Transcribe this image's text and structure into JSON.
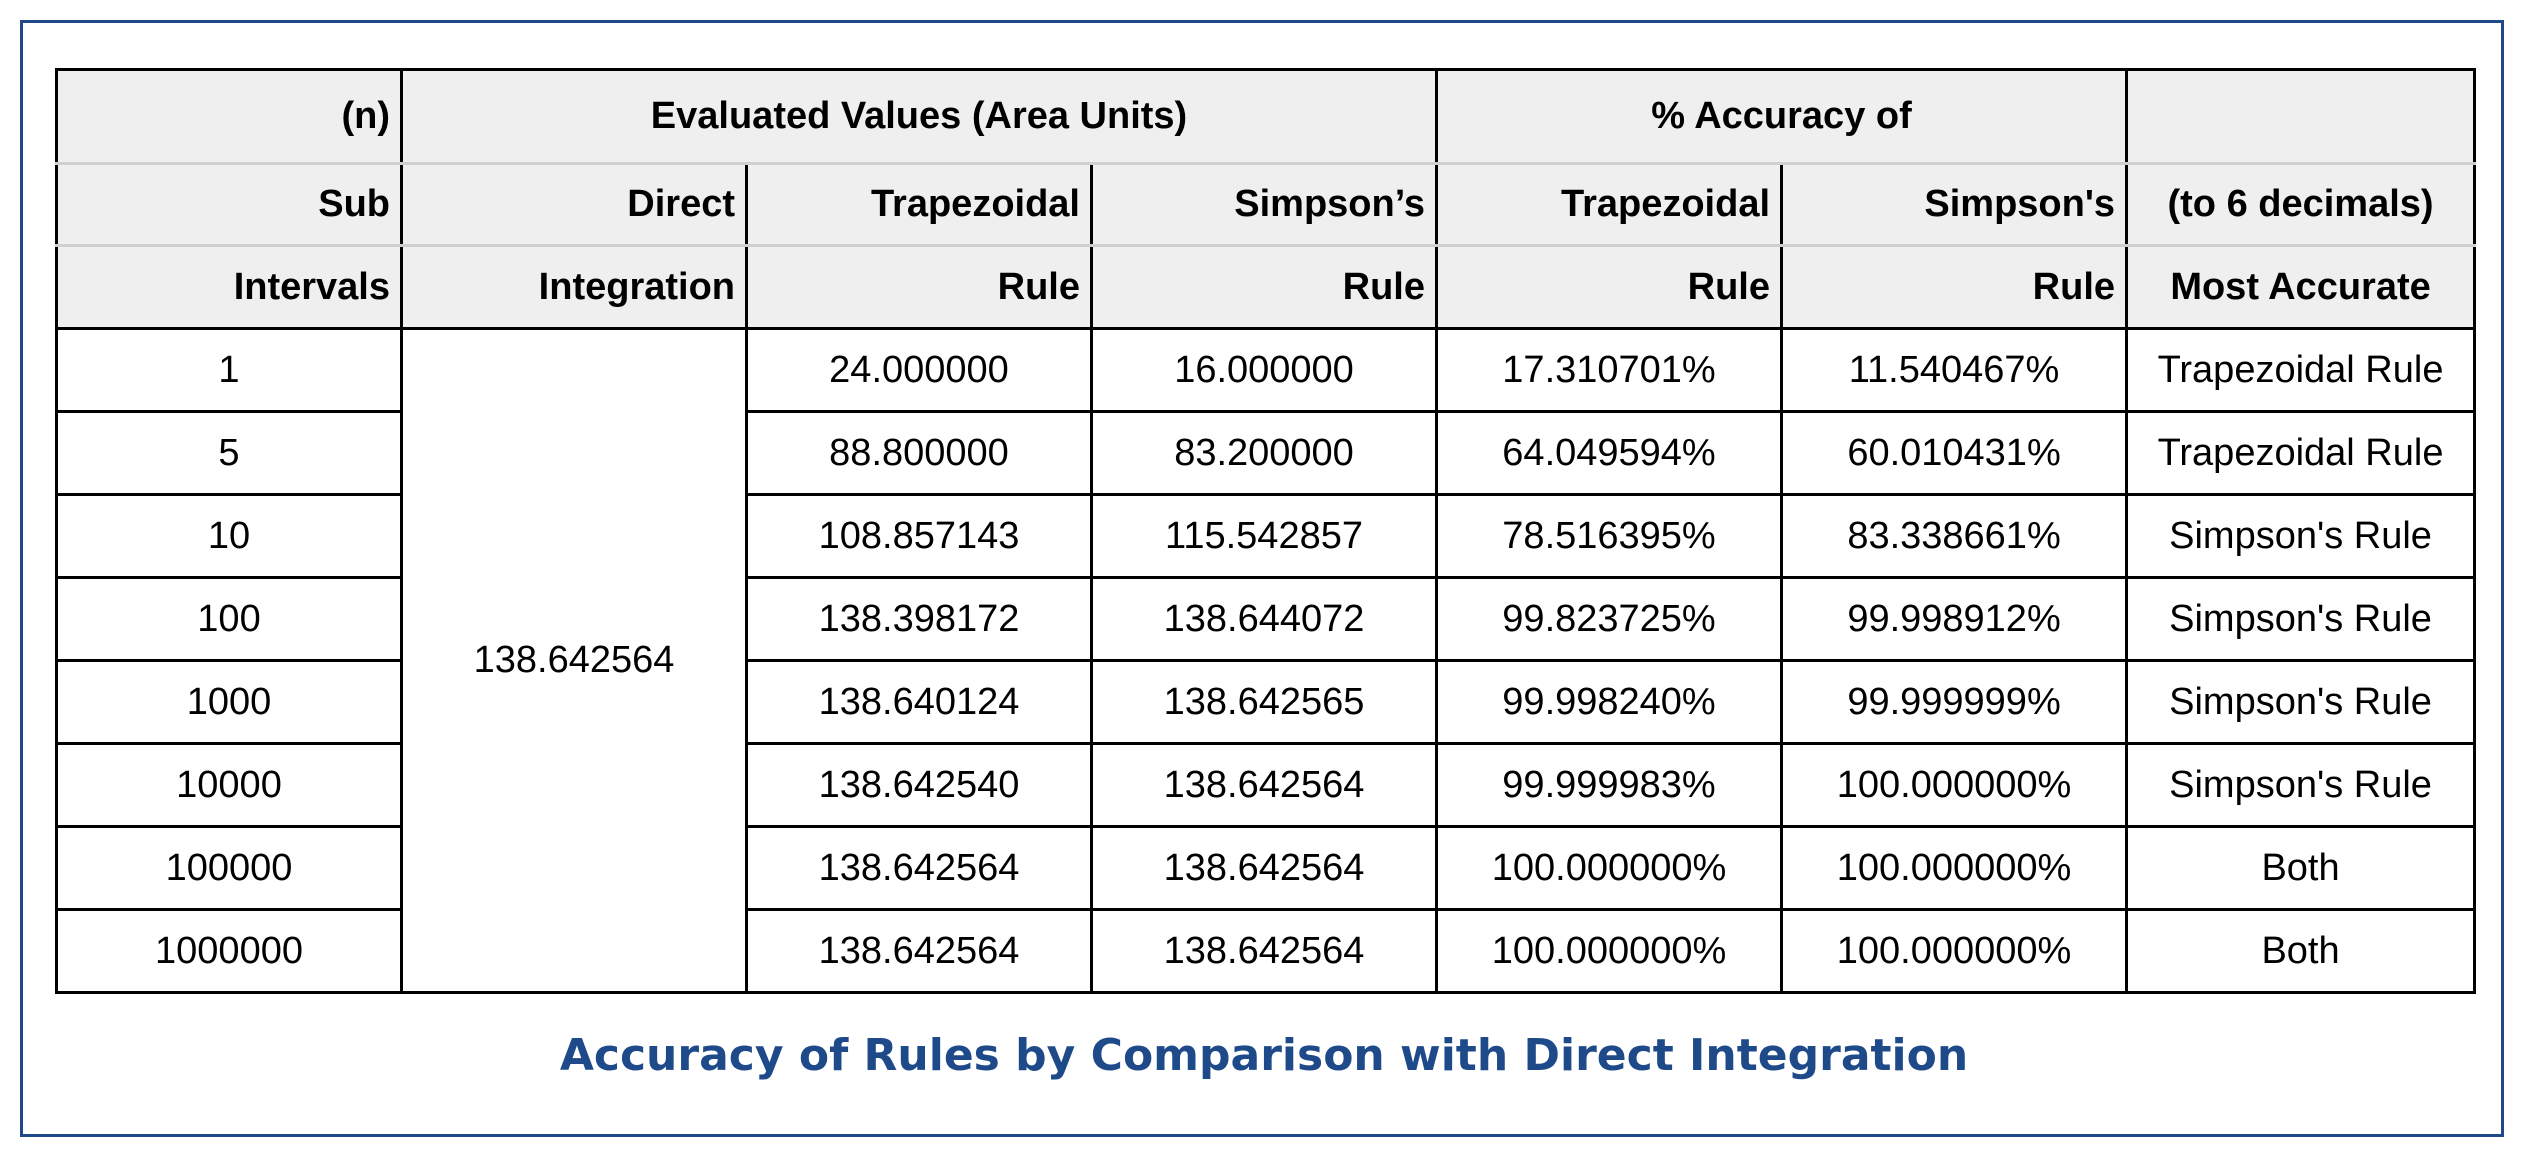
{
  "header": {
    "row1": {
      "n": "(n)",
      "evaluated": "Evaluated Values (Area Units)",
      "accuracy": "% Accuracy of",
      "blank": ""
    },
    "row2": {
      "sub": "Sub",
      "direct": "Direct",
      "trap": "Trapezoidal",
      "simp": "Simpson’s",
      "trap_acc": "Trapezoidal",
      "simp_acc": "Simpson's",
      "decimals": "(to 6 decimals)"
    },
    "row3": {
      "intervals": "Intervals",
      "integration": "Integration",
      "trap_rule": "Rule",
      "simp_rule": "Rule",
      "trap_acc_rule": "Rule",
      "simp_acc_rule": "Rule",
      "most_accurate": "Most Accurate"
    }
  },
  "direct_value": "138.642564",
  "rows": [
    {
      "n": "1",
      "trap": "24.000000",
      "simp": "16.000000",
      "trap_acc": "17.310701%",
      "simp_acc": "11.540467%",
      "best": "Trapezoidal Rule"
    },
    {
      "n": "5",
      "trap": "88.800000",
      "simp": "83.200000",
      "trap_acc": "64.049594%",
      "simp_acc": "60.010431%",
      "best": "Trapezoidal Rule"
    },
    {
      "n": "10",
      "trap": "108.857143",
      "simp": "115.542857",
      "trap_acc": "78.516395%",
      "simp_acc": "83.338661%",
      "best": "Simpson's Rule"
    },
    {
      "n": "100",
      "trap": "138.398172",
      "simp": "138.644072",
      "trap_acc": "99.823725%",
      "simp_acc": "99.998912%",
      "best": "Simpson's Rule"
    },
    {
      "n": "1000",
      "trap": "138.640124",
      "simp": "138.642565",
      "trap_acc": "99.998240%",
      "simp_acc": "99.999999%",
      "best": "Simpson's Rule"
    },
    {
      "n": "10000",
      "trap": "138.642540",
      "simp": "138.642564",
      "trap_acc": "99.999983%",
      "simp_acc": "100.000000%",
      "best": "Simpson's Rule"
    },
    {
      "n": "100000",
      "trap": "138.642564",
      "simp": "138.642564",
      "trap_acc": "100.000000%",
      "simp_acc": "100.000000%",
      "best": "Both"
    },
    {
      "n": "1000000",
      "trap": "138.642564",
      "simp": "138.642564",
      "trap_acc": "100.000000%",
      "simp_acc": "100.000000%",
      "best": "Both"
    }
  ],
  "caption": "Accuracy of Rules by Comparison with Direct Integration",
  "colors": {
    "frame": "#1f4a8a",
    "caption": "#1f4a8a",
    "header_bg": "#efefef",
    "header_divider": "#cfcfcf"
  }
}
